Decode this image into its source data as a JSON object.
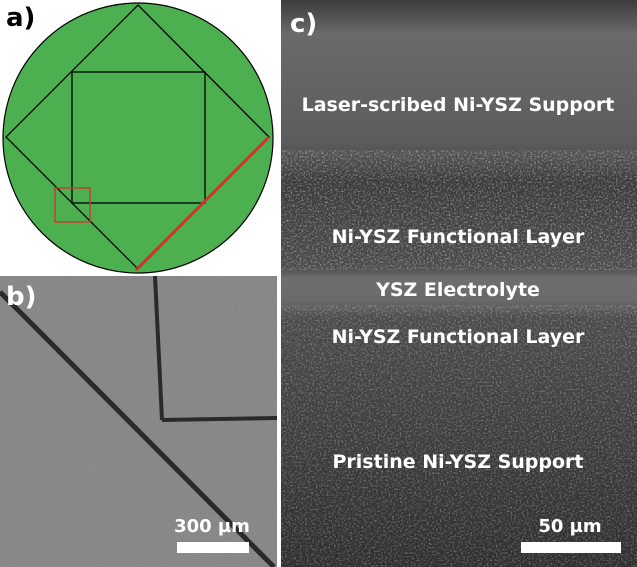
{
  "panels": {
    "a": {
      "label": "a)"
    },
    "b": {
      "label": "b)",
      "scale_bar": "300 µm"
    },
    "c": {
      "label": "c)",
      "scale_bar": "50 µm",
      "layers": [
        "Laser-scribed Ni-YSZ Support",
        "Ni-YSZ Functional Layer",
        "YSZ Electrolyte",
        "Ni-YSZ Functional Layer",
        "Pristine Ni-YSZ Support"
      ]
    }
  }
}
